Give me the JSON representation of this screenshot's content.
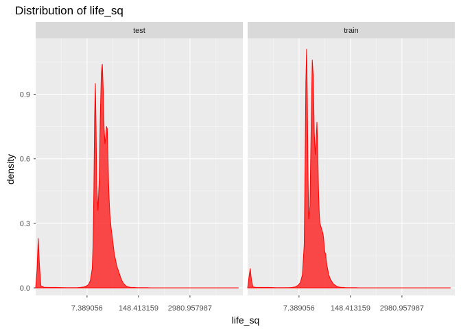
{
  "chart_data": {
    "type": "area",
    "title": "Distribution of life_sq",
    "xlabel": "life_sq",
    "ylabel": "density",
    "x_scale": "log",
    "x_ticks": [
      7.389056,
      148.413159,
      2980.957987
    ],
    "x_tick_labels": [
      "7.389056",
      "148.413159",
      "2980.957987"
    ],
    "xlim": [
      0.37,
      65000
    ],
    "y_ticks": [
      0.0,
      0.3,
      0.6,
      0.9
    ],
    "y_tick_labels": [
      "0.0",
      "0.3",
      "0.6",
      "0.9"
    ],
    "ylim": [
      -0.035,
      1.16
    ],
    "grid": true,
    "facets": [
      {
        "label": "test",
        "x": [
          0.37,
          0.4,
          0.43,
          0.46,
          0.5,
          0.6,
          0.8,
          1.2,
          2,
          3,
          4,
          5,
          6,
          7,
          8,
          9,
          10,
          10.5,
          11,
          11.5,
          12,
          12.5,
          13,
          14,
          15,
          16,
          17,
          18,
          19,
          20,
          21,
          22,
          23,
          24,
          25,
          26,
          27,
          28,
          29,
          30,
          31,
          32,
          33,
          34,
          35,
          36,
          38,
          40,
          42,
          44,
          46,
          48,
          50,
          52,
          54,
          56,
          58,
          60,
          62,
          64,
          66,
          68,
          70,
          72,
          75,
          78,
          80,
          85,
          90,
          95,
          100,
          110,
          120,
          130,
          150,
          180,
          200,
          250,
          300,
          400,
          600,
          1000,
          2000,
          5000,
          10000,
          20000,
          50000
        ],
        "y": [
          0.0,
          0.08,
          0.23,
          0.11,
          0.01,
          0.003,
          0.002,
          0.002,
          0.001,
          0.001,
          0.001,
          0.002,
          0.004,
          0.008,
          0.015,
          0.035,
          0.09,
          0.2,
          0.45,
          0.8,
          0.95,
          0.75,
          0.48,
          0.36,
          0.5,
          0.8,
          1.0,
          1.04,
          0.92,
          0.74,
          0.67,
          0.7,
          0.75,
          0.74,
          0.62,
          0.48,
          0.4,
          0.34,
          0.31,
          0.28,
          0.26,
          0.24,
          0.22,
          0.2,
          0.18,
          0.16,
          0.14,
          0.12,
          0.1,
          0.09,
          0.08,
          0.07,
          0.06,
          0.05,
          0.043,
          0.035,
          0.03,
          0.025,
          0.02,
          0.018,
          0.015,
          0.013,
          0.011,
          0.009,
          0.007,
          0.006,
          0.005,
          0.004,
          0.003,
          0.002,
          0.002,
          0.002,
          0.002,
          0.001,
          0.001,
          0.001,
          0.001,
          0.001,
          0.0,
          0.0,
          0.0,
          0.0,
          0.0,
          0.0,
          0.0,
          0.0,
          0.0
        ]
      },
      {
        "label": "train",
        "x": [
          0.37,
          0.4,
          0.43,
          0.46,
          0.5,
          0.6,
          0.8,
          1.2,
          2,
          3,
          4,
          5,
          6,
          7,
          8,
          9,
          10,
          10.5,
          11,
          11.5,
          12,
          12.5,
          13,
          14,
          15,
          16,
          17,
          18,
          19,
          20,
          21,
          22,
          23,
          24,
          25,
          26,
          27,
          28,
          29,
          30,
          31,
          32,
          33,
          34,
          35,
          36,
          38,
          40,
          42,
          44,
          46,
          48,
          50,
          52,
          54,
          56,
          58,
          60,
          62,
          64,
          66,
          68,
          70,
          72,
          75,
          78,
          80,
          85,
          90,
          95,
          100,
          110,
          120,
          130,
          150,
          180,
          200,
          250,
          300,
          400,
          600,
          1000,
          2000,
          5000,
          10000,
          20000,
          50000
        ],
        "y": [
          0.0,
          0.05,
          0.09,
          0.04,
          0.005,
          0.002,
          0.002,
          0.002,
          0.001,
          0.001,
          0.001,
          0.002,
          0.005,
          0.012,
          0.025,
          0.06,
          0.2,
          0.55,
          0.95,
          1.11,
          0.88,
          0.52,
          0.32,
          0.38,
          0.75,
          1.06,
          0.98,
          0.72,
          0.62,
          0.68,
          0.77,
          0.64,
          0.46,
          0.35,
          0.3,
          0.29,
          0.28,
          0.27,
          0.26,
          0.25,
          0.23,
          0.2,
          0.17,
          0.16,
          0.16,
          0.13,
          0.1,
          0.08,
          0.06,
          0.05,
          0.04,
          0.035,
          0.03,
          0.025,
          0.02,
          0.017,
          0.015,
          0.013,
          0.011,
          0.01,
          0.008,
          0.007,
          0.006,
          0.005,
          0.004,
          0.004,
          0.003,
          0.003,
          0.002,
          0.002,
          0.002,
          0.001,
          0.001,
          0.001,
          0.001,
          0.001,
          0.001,
          0.0,
          0.0,
          0.0,
          0.0,
          0.0,
          0.0,
          0.0,
          0.0,
          0.0,
          0.0
        ]
      }
    ],
    "colors": {
      "fill": "#ff0000",
      "fill_opacity": 0.7,
      "line": "#ff0000",
      "panel_background": "#ebebeb",
      "strip_background": "#d9d9d9",
      "grid_major": "#ffffff"
    }
  }
}
